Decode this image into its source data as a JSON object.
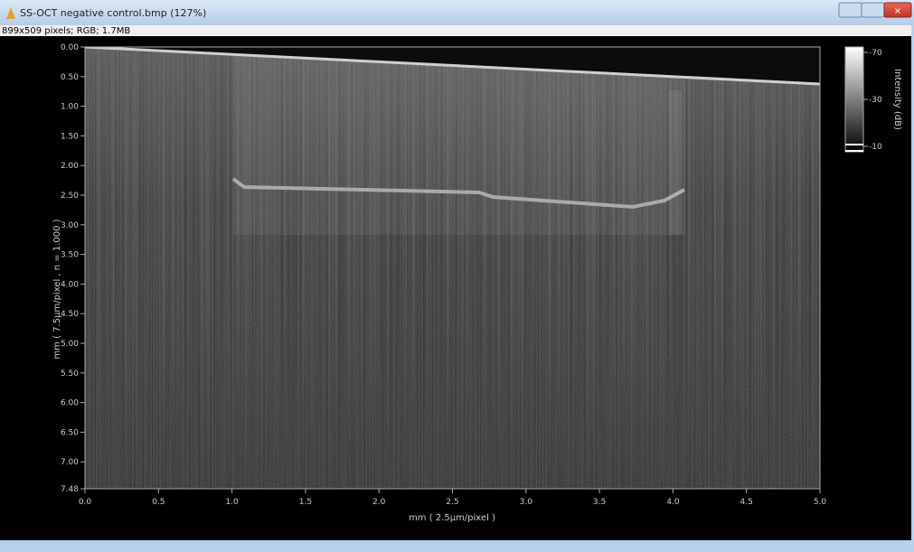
{
  "window": {
    "title": "SS-OCT negative control.bmp (127%)",
    "info": "899x509 pixels; RGB; 1.7MB"
  },
  "plot": {
    "x_label": "mm ( 2.5µm/pixel )",
    "y_label": "mm  ( 7.5µm/pixel , n = 1.000 )",
    "x_ticks": [
      "0.0",
      "0.5",
      "1.0",
      "1.5",
      "2.0",
      "2.5",
      "3.0",
      "3.5",
      "4.0",
      "4.5",
      "5.0"
    ],
    "y_ticks": [
      "0.00",
      "0.50",
      "1.00",
      "1.50",
      "2.00",
      "2.50",
      "3.00",
      "3.50",
      "4.00",
      "4.50",
      "5.00",
      "5.50",
      "6.00",
      "6.50",
      "7.00",
      "7.48"
    ],
    "colorbar": {
      "label": "Intensity (dB)",
      "ticks": [
        "-70",
        "-30",
        "-10"
      ]
    }
  }
}
